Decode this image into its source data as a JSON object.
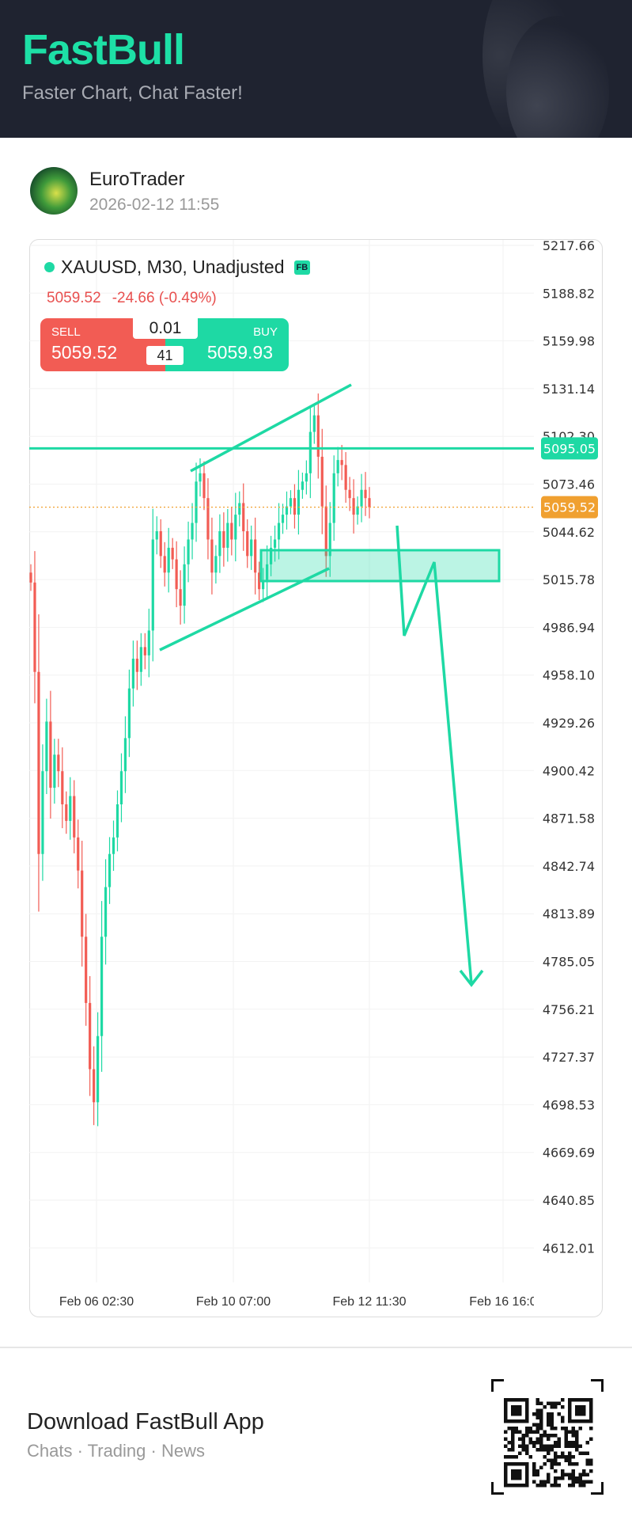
{
  "header": {
    "logo": "FastBull",
    "tagline": "Faster Chart, Chat Faster!"
  },
  "post": {
    "author": "EuroTrader",
    "timestamp": "2026-02-12 11:55"
  },
  "instrument": {
    "title": "XAUUSD, M30, Unadjusted",
    "badge": "FB",
    "last_price": "5059.52",
    "change": "-24.66 (-0.49%)"
  },
  "trade": {
    "sell_label": "SELL",
    "sell_price": "5059.52",
    "buy_label": "BUY",
    "buy_price": "5059.93",
    "lot": "0.01",
    "spread": "41"
  },
  "colors": {
    "up": "#1ed9a4",
    "down": "#f25c54",
    "drawing": "#1ed9a4",
    "last_price": "#f0a030",
    "header_bg": "#1f2330"
  },
  "chart_data": {
    "type": "candlestick",
    "symbol": "XAUUSD",
    "timeframe": "M30",
    "price_ticks": [
      "5217.66",
      "5188.82",
      "5159.98",
      "5131.14",
      "5102.30",
      "5073.46",
      "5044.62",
      "5015.78",
      "4986.94",
      "4958.10",
      "4929.26",
      "4900.42",
      "4871.58",
      "4842.74",
      "4813.89",
      "4785.05",
      "4756.21",
      "4727.37",
      "4698.53",
      "4669.69",
      "4640.85",
      "4612.01"
    ],
    "ylim": [
      4598,
      5224
    ],
    "time_ticks": [
      "Feb 06 02:30",
      "Feb 10 07:00",
      "Feb 12 11:30",
      "Feb 16 16:0"
    ],
    "grid": true,
    "closes": [
      5014,
      4960,
      4850,
      4900,
      4930,
      4890,
      4910,
      4900,
      4880,
      4870,
      4885,
      4860,
      4840,
      4800,
      4760,
      4720,
      4700,
      4740,
      4800,
      4830,
      4850,
      4860,
      4880,
      4900,
      4920,
      4950,
      4968,
      4960,
      4975,
      4970,
      4985,
      5040,
      5045,
      5030,
      5020,
      5035,
      5028,
      5010,
      5000,
      5025,
      5040,
      5050,
      5075,
      5080,
      5065,
      5040,
      5020,
      5030,
      5045,
      5035,
      5050,
      5040,
      5055,
      5062,
      5045,
      5030,
      5040,
      5020,
      5010,
      5015,
      5025,
      5035,
      5040,
      5050,
      5055,
      5060,
      5065,
      5055,
      5070,
      5075,
      5080,
      5105,
      5115,
      5090,
      5060,
      5030,
      5050,
      5080,
      5088,
      5085,
      5070,
      5065,
      5055,
      5060,
      5070,
      5065,
      5059.52
    ],
    "horizontal_line": {
      "price": 5095.05,
      "label": "5095.05"
    },
    "last_price_line": {
      "price": 5059.52,
      "label": "5059.52"
    },
    "drawings": [
      "ascending-channel",
      "supply-zone-rectangle",
      "zigzag-down-arrow"
    ]
  },
  "footer": {
    "title": "Download FastBull App",
    "subtitle": "Chats · Trading · News"
  }
}
